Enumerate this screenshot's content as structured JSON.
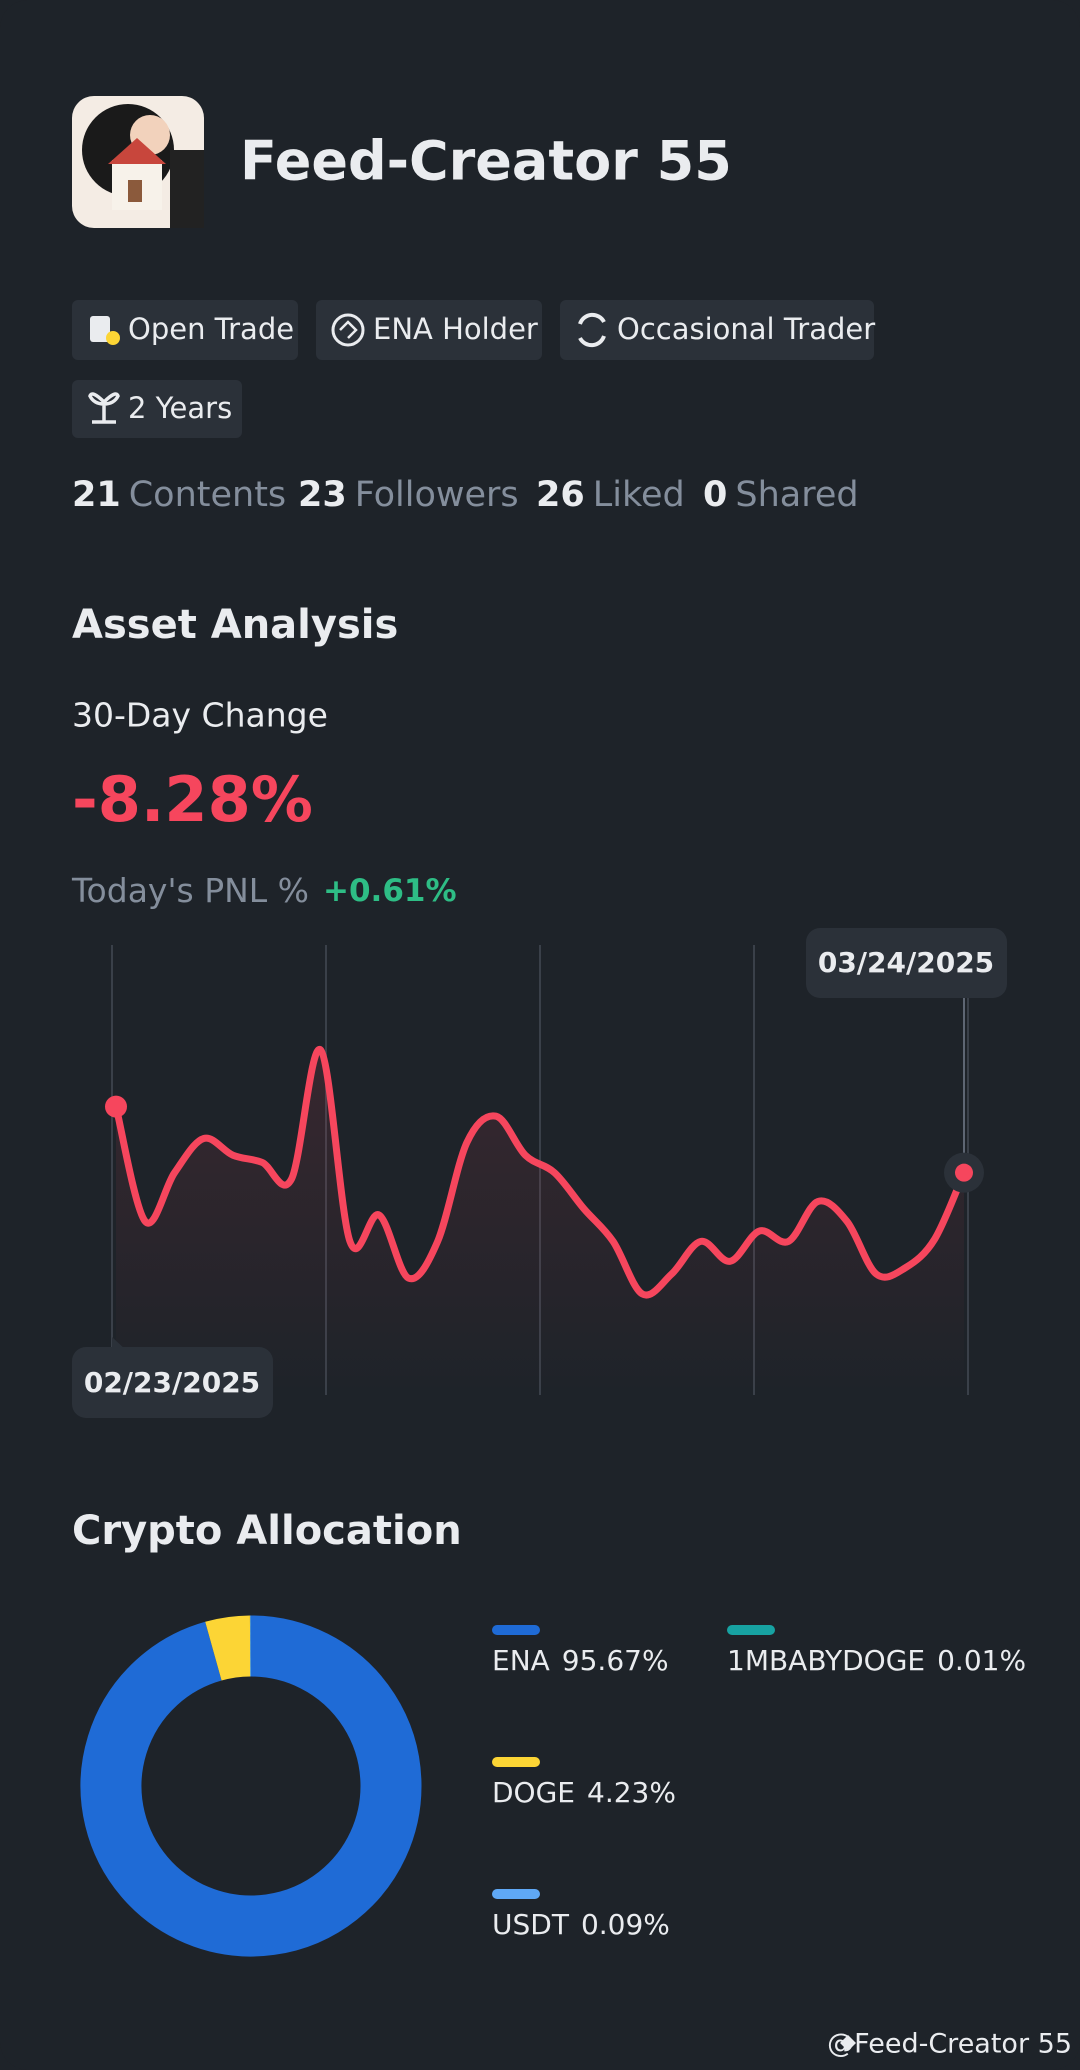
{
  "header": {
    "name": "Feed-Creator 55"
  },
  "badges": [
    "Open Trade",
    "ENA Holder",
    "Occasional Trader",
    "2 Years"
  ],
  "stats": [
    {
      "value": 21,
      "label": "Contents"
    },
    {
      "value": 23,
      "label": "Followers"
    },
    {
      "value": 26,
      "label": "Liked"
    },
    {
      "value": 0,
      "label": "Shared"
    }
  ],
  "asset_analysis": {
    "title": "Asset Analysis",
    "change_label": "30-Day Change",
    "change_value": "-8.28%",
    "pnl_label": "Today's PNL %",
    "pnl_value": "+0.61%"
  },
  "allocation_title": "Crypto Allocation",
  "footer": "@Feed-Creator 55",
  "chart_data": [
    {
      "type": "line",
      "color": "#f6465d",
      "start_label": "02/23/2025",
      "end_label": "03/24/2025",
      "values": [
        0,
        -14.4,
        -8.3,
        -4.0,
        -6.1,
        -7.0,
        -9.1,
        7.1,
        -16.9,
        -13.6,
        -21.5,
        -16.9,
        -4.5,
        -1.2,
        -6.1,
        -8.3,
        -12.8,
        -16.9,
        -23.5,
        -21.0,
        -16.9,
        -19.4,
        -15.6,
        -16.9,
        -11.9,
        -14.4,
        -21.0,
        -20.2,
        -16.6,
        -8.28
      ]
    },
    {
      "type": "pie",
      "series": [
        {
          "name": "ENA",
          "color": "#1f6bd6",
          "values": [
            95.67
          ],
          "value_labels": [
            "95.67%"
          ]
        },
        {
          "name": "DOGE",
          "color": "#fcd535",
          "values": [
            4.23
          ],
          "value_labels": [
            "4.23%"
          ]
        },
        {
          "name": "USDT",
          "color": "#5fa8f5",
          "values": [
            0.09
          ],
          "value_labels": [
            "0.09%"
          ]
        },
        {
          "name": "1MBABYDOGE",
          "color": "#17a2a2",
          "values": [
            0.01
          ],
          "value_labels": [
            "0.01%"
          ]
        }
      ]
    }
  ]
}
